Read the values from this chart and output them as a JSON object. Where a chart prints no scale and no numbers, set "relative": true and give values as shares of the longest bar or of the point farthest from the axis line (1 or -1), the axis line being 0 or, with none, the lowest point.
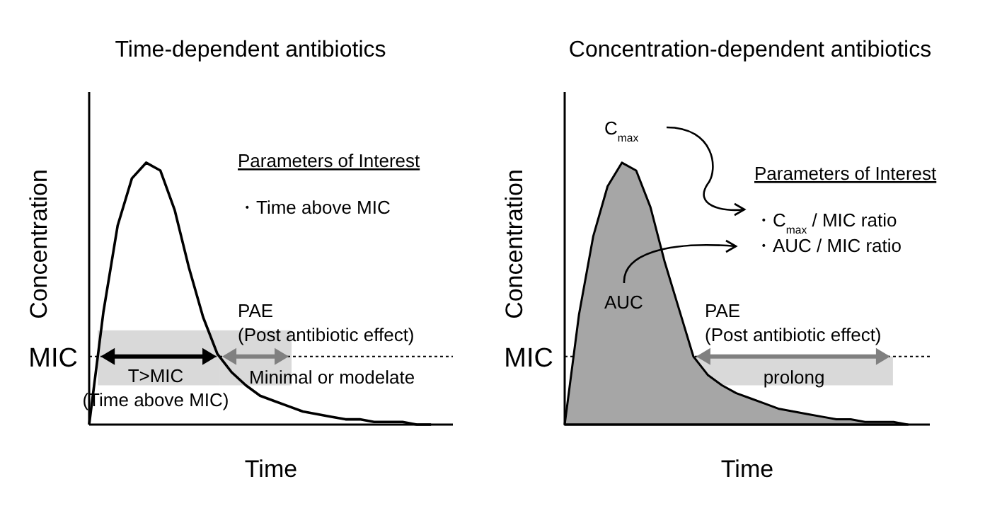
{
  "chart_data": [
    {
      "type": "line",
      "title": "Time-dependent antibiotics",
      "xlabel": "Time",
      "ylabel": "Concentration",
      "relative": true,
      "categories": [
        null,
        null,
        null,
        null,
        null,
        null,
        null,
        null,
        null,
        null,
        null,
        null,
        null,
        null,
        null,
        null,
        null,
        null,
        null,
        null,
        null,
        null,
        null,
        null,
        null
      ],
      "series": [
        {
          "color": "#000000",
          "values": [
            0,
            0.43,
            0.76,
            0.94,
            1,
            0.97,
            0.82,
            0.6,
            0.41,
            0.27,
            0.2,
            0.15,
            0.11,
            0.09,
            0.07,
            0.05,
            0.04,
            0.03,
            0.02,
            0.02,
            0.01,
            0.01,
            0.01,
            0,
            0
          ]
        }
      ],
      "ref_lines": [
        {
          "axis": "y",
          "value": 0.26,
          "label": "MIC",
          "line_style": "dotted"
        }
      ],
      "annotations": [
        "Parameters of Interest",
        "・Time above MIC",
        "PAE\n(Post antibiotic effect)",
        "T>MIC\n(Time above MIC)",
        "Minimal or modelate"
      ]
    },
    {
      "type": "area",
      "title": "Concentration-dependent antibiotics",
      "xlabel": "Time",
      "ylabel": "Concentration",
      "relative": true,
      "categories": [
        null,
        null,
        null,
        null,
        null,
        null,
        null,
        null,
        null,
        null,
        null,
        null,
        null,
        null,
        null,
        null,
        null,
        null,
        null,
        null,
        null,
        null,
        null,
        null,
        null
      ],
      "series": [
        {
          "color": "#a6a6a6",
          "values": [
            0,
            0.42,
            0.72,
            0.91,
            1,
            0.97,
            0.83,
            0.62,
            0.44,
            0.26,
            0.19,
            0.15,
            0.12,
            0.1,
            0.08,
            0.06,
            0.05,
            0.04,
            0.03,
            0.02,
            0.02,
            0.01,
            0.01,
            0.01,
            0
          ]
        }
      ],
      "ref_lines": [
        {
          "axis": "y",
          "value": 0.26,
          "label": "MIC",
          "line_style": "dotted"
        }
      ],
      "annotations": [
        "C$_{max}$",
        "Parameters of Interest",
        "・C$_{max}$ / MIC ratio",
        "・AUC   / MIC ratio",
        "AUC",
        "PAE\n(Post antibiotic effect)",
        "prolong"
      ]
    }
  ]
}
